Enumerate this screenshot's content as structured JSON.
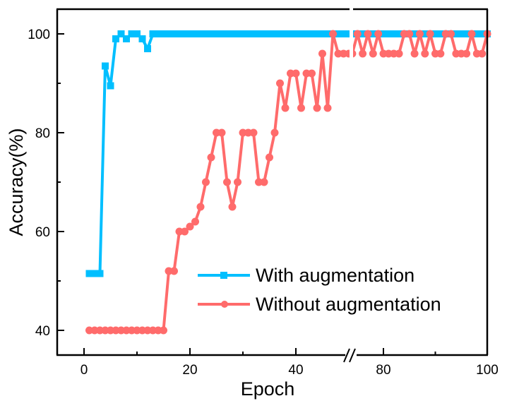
{
  "chart_data": {
    "type": "line",
    "title": "",
    "xlabel": "Epoch",
    "ylabel": "Accuracy(%)",
    "xlim_segments": [
      [
        -5,
        50.4
      ],
      [
        73.7,
        100
      ]
    ],
    "axis_break": {
      "between": [
        50,
        74
      ],
      "marker": "//"
    },
    "ylim": [
      35,
      105
    ],
    "x_ticks": [
      0,
      20,
      40,
      80,
      100
    ],
    "x_minor_ticks": [
      10,
      30,
      90
    ],
    "y_ticks": [
      40,
      60,
      80,
      100
    ],
    "y_minor_ticks": [
      50,
      70,
      90
    ],
    "grid": false,
    "legend_position": "lower right",
    "series": [
      {
        "name": "With augmentation",
        "color": "#00BFFF",
        "marker": "square",
        "x": [
          1,
          2,
          3,
          4,
          5,
          6,
          7,
          8,
          9,
          10,
          11,
          12,
          13,
          14,
          15,
          16,
          17,
          18,
          19,
          20,
          21,
          22,
          23,
          24,
          25,
          26,
          27,
          28,
          29,
          30,
          31,
          32,
          33,
          34,
          35,
          36,
          37,
          38,
          39,
          40,
          41,
          42,
          43,
          44,
          45,
          46,
          47,
          48,
          49,
          50,
          74,
          75,
          76,
          77,
          78,
          79,
          80,
          81,
          82,
          83,
          84,
          85,
          86,
          87,
          88,
          89,
          90,
          91,
          92,
          93,
          94,
          95,
          96,
          97,
          98,
          99,
          100
        ],
        "values": [
          51.5,
          51.5,
          51.5,
          93.5,
          89.5,
          99,
          100,
          99,
          100,
          100,
          99,
          97,
          100,
          100,
          100,
          100,
          100,
          100,
          100,
          100,
          100,
          100,
          100,
          100,
          100,
          100,
          100,
          100,
          100,
          100,
          100,
          100,
          100,
          100,
          100,
          100,
          100,
          100,
          100,
          100,
          100,
          100,
          100,
          100,
          100,
          100,
          100,
          100,
          100,
          100,
          100,
          100,
          100,
          100,
          100,
          100,
          100,
          100,
          100,
          100,
          100,
          100,
          100,
          100,
          100,
          100,
          100,
          100,
          100,
          100,
          100,
          100,
          100,
          100,
          100,
          100,
          100
        ]
      },
      {
        "name": "Without augmentation",
        "color": "#FF6B6B",
        "marker": "circle",
        "x": [
          1,
          2,
          3,
          4,
          5,
          6,
          7,
          8,
          9,
          10,
          11,
          12,
          13,
          14,
          15,
          16,
          17,
          18,
          19,
          20,
          21,
          22,
          23,
          24,
          25,
          26,
          27,
          28,
          29,
          30,
          31,
          32,
          33,
          34,
          35,
          36,
          37,
          38,
          39,
          40,
          41,
          42,
          43,
          44,
          45,
          46,
          47,
          48,
          49,
          50,
          74,
          75,
          76,
          77,
          78,
          79,
          80,
          81,
          82,
          83,
          84,
          85,
          86,
          87,
          88,
          89,
          90,
          91,
          92,
          93,
          94,
          95,
          96,
          97,
          98,
          99,
          100
        ],
        "values": [
          40,
          40,
          40,
          40,
          40,
          40,
          40,
          40,
          40,
          40,
          40,
          40,
          40,
          40,
          40,
          52,
          52,
          60,
          60,
          61,
          62,
          65,
          70,
          75,
          80,
          80,
          70,
          65,
          70,
          80,
          80,
          80,
          70,
          70,
          75,
          80,
          90,
          85,
          92,
          92,
          85,
          92,
          92,
          85,
          96,
          85,
          100,
          96,
          96,
          96,
          96,
          100,
          96,
          100,
          96,
          100,
          96,
          96,
          96,
          96,
          100,
          100,
          96,
          100,
          96,
          100,
          96,
          96,
          100,
          100,
          96,
          96,
          96,
          100,
          96,
          96,
          100
        ]
      }
    ]
  },
  "axes": {
    "x_tick_labels": [
      "0",
      "20",
      "40",
      "80",
      "100"
    ],
    "y_tick_labels": [
      "40",
      "60",
      "80",
      "100"
    ],
    "x_title": "Epoch",
    "y_title": "Accuracy(%)"
  },
  "legend": {
    "items": [
      {
        "label": "With augmentation",
        "color": "#00BFFF",
        "marker": "square"
      },
      {
        "label": "Without augmentation",
        "color": "#FF6B6B",
        "marker": "circle"
      }
    ]
  }
}
